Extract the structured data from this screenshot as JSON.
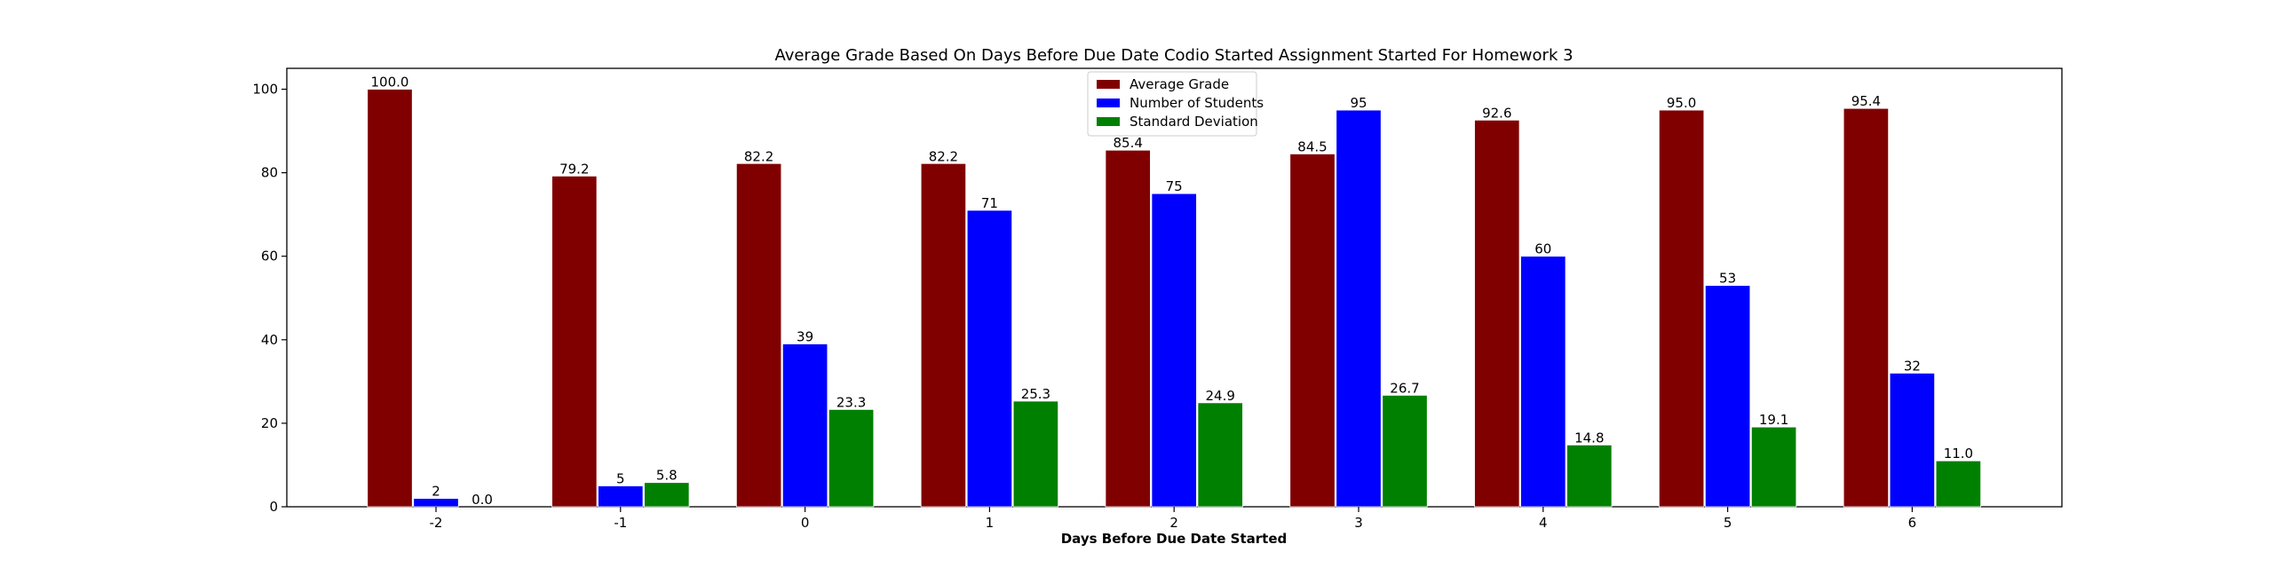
{
  "chart_data": {
    "type": "bar",
    "title": "Average Grade Based On Days Before Due Date Codio Started Assignment Started For Homework 3",
    "xlabel": "Days Before Due Date Started",
    "ylabel": "",
    "categories": [
      "-2",
      "-1",
      "0",
      "1",
      "2",
      "3",
      "4",
      "5",
      "6"
    ],
    "ylim": [
      0,
      105
    ],
    "yticks": [
      0,
      20,
      40,
      60,
      80,
      100
    ],
    "grid": false,
    "legend_position": "top-center",
    "series": [
      {
        "name": "Average Grade",
        "color": "#800000",
        "values": [
          100.0,
          79.2,
          82.2,
          82.2,
          85.4,
          84.5,
          92.6,
          95.0,
          95.4
        ],
        "labels": [
          "100.0",
          "79.2",
          "82.2",
          "82.2",
          "85.4",
          "84.5",
          "92.6",
          "95.0",
          "95.4"
        ]
      },
      {
        "name": "Number of Students",
        "color": "#0000ff",
        "values": [
          2,
          5,
          39,
          71,
          75,
          95,
          60,
          53,
          32
        ],
        "labels": [
          "2",
          "5",
          "39",
          "71",
          "75",
          "95",
          "60",
          "53",
          "32"
        ]
      },
      {
        "name": "Standard Deviation",
        "color": "#008000",
        "values": [
          0.0,
          5.8,
          23.3,
          25.3,
          24.9,
          26.7,
          14.8,
          19.1,
          11.0
        ],
        "labels": [
          "0.0",
          "5.8",
          "23.3",
          "25.3",
          "24.9",
          "26.7",
          "14.8",
          "19.1",
          "11.0"
        ]
      }
    ]
  }
}
